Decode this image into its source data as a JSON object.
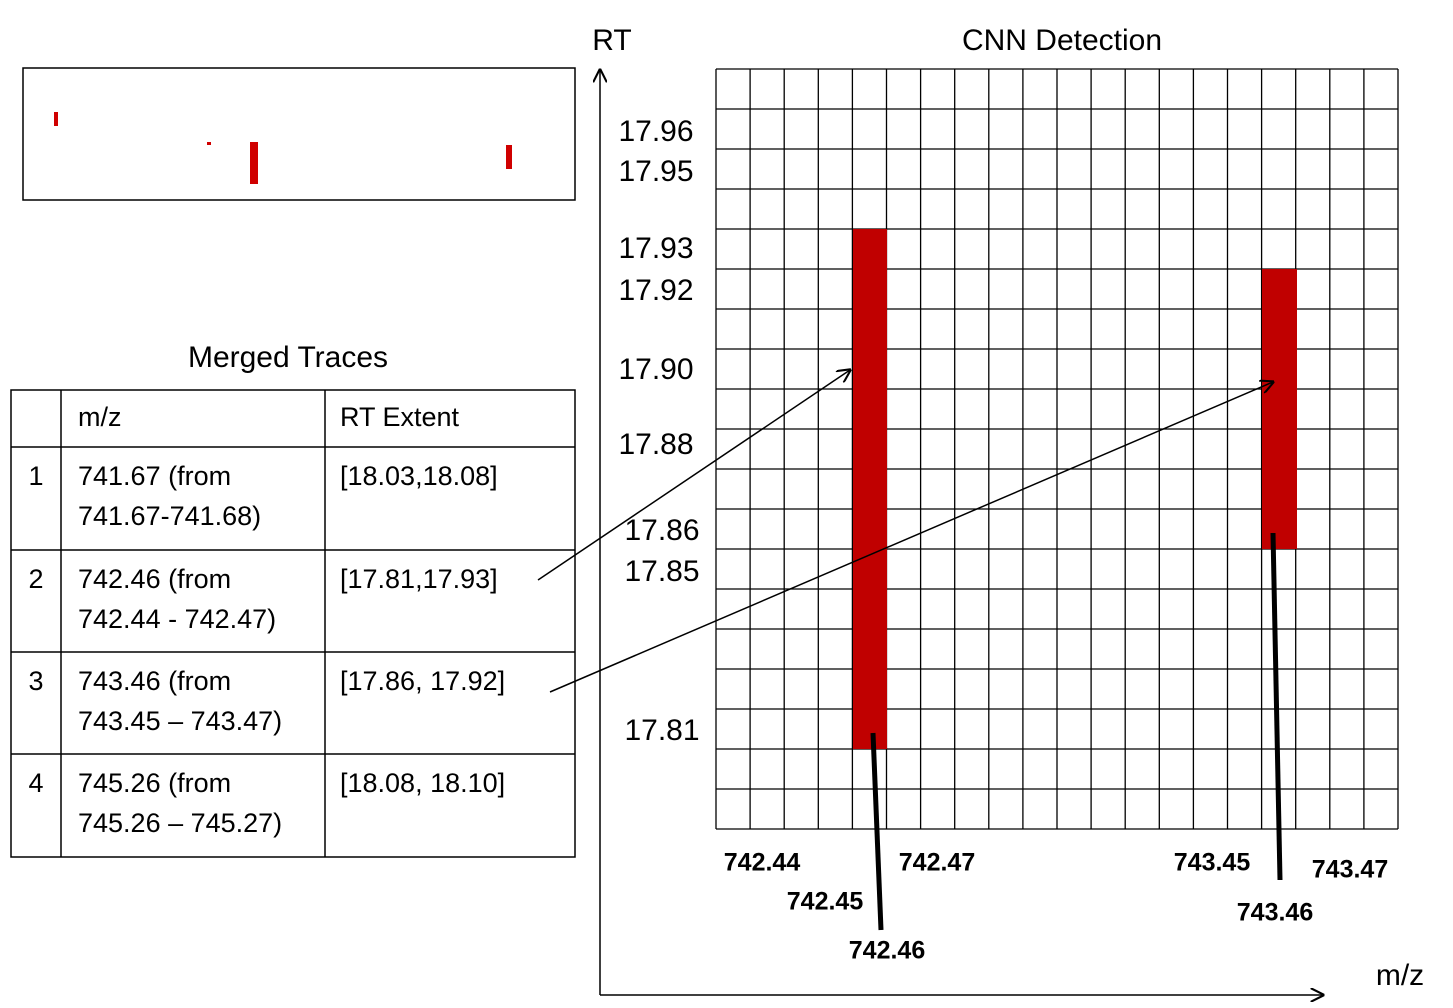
{
  "cnn_detection": {
    "title": "CNN Detection",
    "y_axis_label": "RT",
    "x_axis_label": "m/z",
    "rt_labels": [
      "17.96",
      "17.95",
      "17.93",
      "17.92",
      "17.90",
      "17.88",
      "17.86",
      "17.85",
      "17.81"
    ],
    "mz_labels": [
      "742.44",
      "742.47",
      "742.45",
      "742.46",
      "743.45",
      "743.47",
      "743.46"
    ]
  },
  "merged_traces": {
    "title": "Merged Traces",
    "header": [
      "m/z",
      "RT Extent"
    ],
    "rows": [
      {
        "index": "1",
        "mz": [
          "741.67 (from",
          "741.67-741.68)"
        ],
        "rt_extent": "[18.03,18.08]"
      },
      {
        "index": "2",
        "mz": [
          "742.46 (from",
          "742.44 - 742.47)"
        ],
        "rt_extent": "[17.81,17.93]"
      },
      {
        "index": "3",
        "mz": [
          "743.46 (from",
          "743.45 – 743.47)"
        ],
        "rt_extent": "[17.86, 17.92]"
      },
      {
        "index": "4",
        "mz": [
          "745.26 (from",
          "745.26 – 745.27)"
        ],
        "rt_extent": "[18.08, 18.10]"
      }
    ]
  }
}
